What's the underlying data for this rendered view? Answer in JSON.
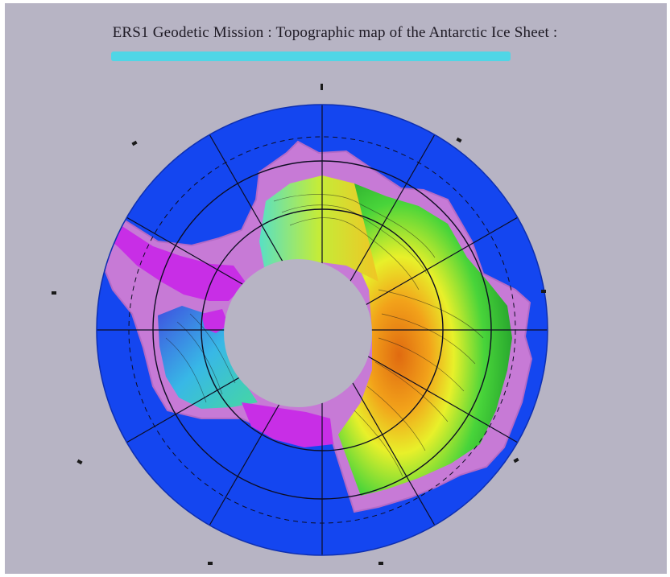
{
  "title": "ERS1 Geodetic Mission : Topographic map of the Antarctic Ice Sheet :",
  "colors": {
    "background": "#b7b4c4",
    "ocean": "#1446f0",
    "coast": "#c77ad6",
    "low_elevation": "#c82ee6",
    "subtitle": "#4fd6e6",
    "grid": "#0d0d22"
  },
  "map": {
    "projection": "polar stereographic",
    "pole": "south",
    "color_scale": [
      "magenta",
      "blue",
      "cyan",
      "green",
      "yellow",
      "orange"
    ]
  }
}
